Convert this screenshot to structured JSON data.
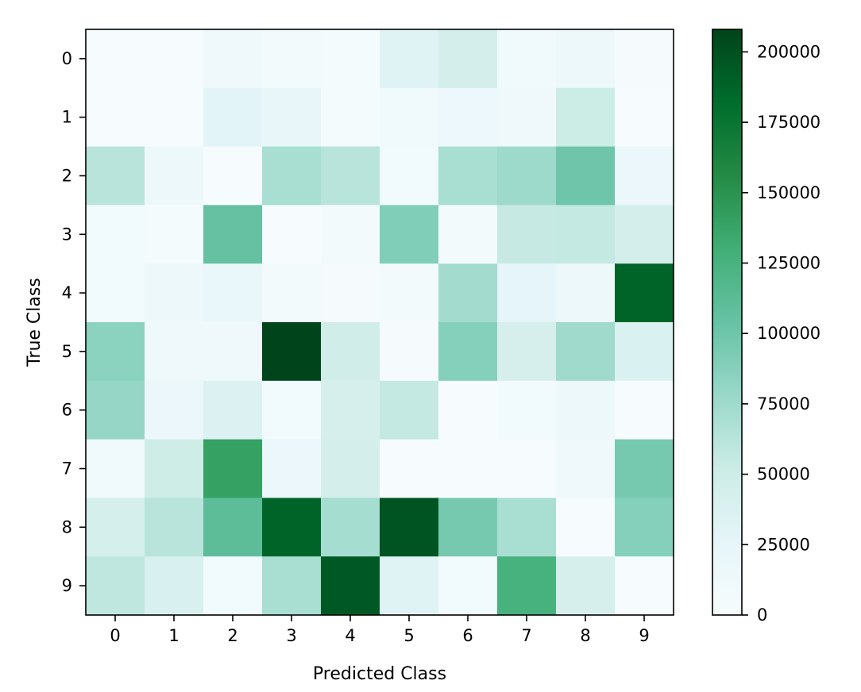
{
  "chart_data": {
    "type": "heatmap",
    "title": "",
    "xlabel": "Predicted Class",
    "ylabel": "True Class",
    "x_categories": [
      "0",
      "1",
      "2",
      "3",
      "4",
      "5",
      "6",
      "7",
      "8",
      "9"
    ],
    "y_categories": [
      "0",
      "1",
      "2",
      "3",
      "4",
      "5",
      "6",
      "7",
      "8",
      "9"
    ],
    "values": [
      [
        2000,
        1000,
        12000,
        6000,
        4000,
        32000,
        45000,
        10000,
        14000,
        3000
      ],
      [
        1000,
        1000,
        28000,
        22000,
        5000,
        10000,
        16000,
        12000,
        52000,
        2000
      ],
      [
        62000,
        14000,
        1000,
        70000,
        62000,
        8000,
        70000,
        76000,
        100000,
        18000
      ],
      [
        9000,
        4000,
        105000,
        1000,
        6000,
        90000,
        6000,
        55000,
        56000,
        45000
      ],
      [
        8000,
        14000,
        20000,
        6000,
        3000,
        6000,
        73000,
        26000,
        14000,
        188000
      ],
      [
        85000,
        12000,
        12000,
        210000,
        48000,
        3000,
        88000,
        42000,
        75000,
        38000
      ],
      [
        80000,
        18000,
        35000,
        8000,
        42000,
        56000,
        2000,
        9000,
        14000,
        2000
      ],
      [
        10000,
        50000,
        140000,
        18000,
        45000,
        1000,
        1000,
        1000,
        12000,
        96000
      ],
      [
        44000,
        62000,
        110000,
        188000,
        72000,
        198000,
        96000,
        70000,
        1000,
        88000
      ],
      [
        58000,
        40000,
        8000,
        70000,
        195000,
        32000,
        8000,
        125000,
        42000,
        2000
      ]
    ],
    "colorbar": {
      "min": 0,
      "max": 208000,
      "ticks": [
        0,
        25000,
        50000,
        75000,
        100000,
        125000,
        150000,
        175000,
        200000
      ],
      "tick_labels": [
        "0",
        "25000",
        "50000",
        "75000",
        "100000",
        "125000",
        "150000",
        "175000",
        "200000"
      ],
      "colormap": "BuGn",
      "colors": [
        "#f7fcfd",
        "#e5f5f9",
        "#ccece6",
        "#99d8c9",
        "#66c2a4",
        "#41ae76",
        "#238b45",
        "#006d2c",
        "#00441b"
      ]
    },
    "grid": false
  }
}
